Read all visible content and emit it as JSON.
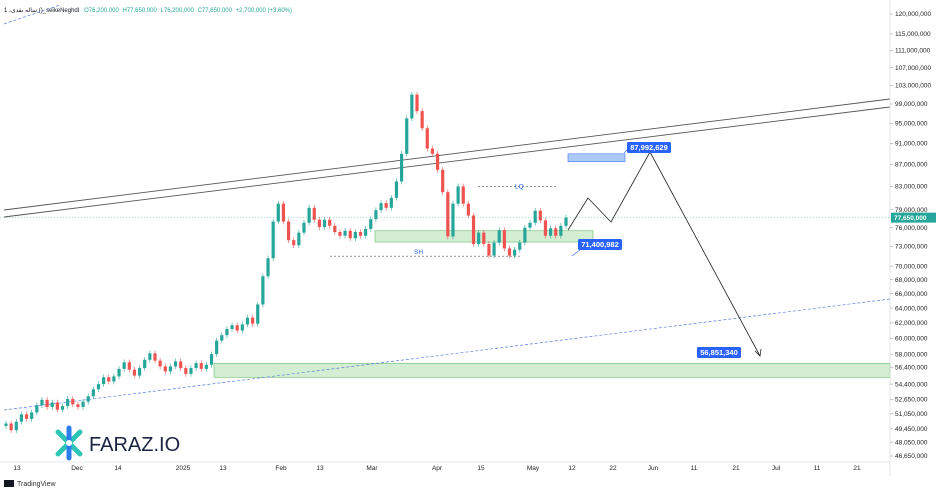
{
  "header": {
    "symbol": "1 ،ساله نقدی ()_seikeNeghdI",
    "open": "O76,200,000",
    "high": "H77,650,000",
    "low": "L76,200,000",
    "close": "C77,650,000",
    "change": "+2,700,000 (+3.60%)"
  },
  "colors": {
    "up": "#26a69a",
    "down": "#ef5350",
    "zone_fill": "#cdeccd",
    "zone_stroke": "#4caf50",
    "callout": "#2962ff",
    "channel": "#555555",
    "trend": "#5b7cdb",
    "price_tag": "#26a69a"
  },
  "chart_data": {
    "type": "candlestick",
    "price_axis": {
      "ticks": [
        120000000,
        115000000,
        111000000,
        107000000,
        103000000,
        99000000,
        95000000,
        91000000,
        87000000,
        83000000,
        79000000,
        76000000,
        73000000,
        70000000,
        68000000,
        66000000,
        64000000,
        62000000,
        60000000,
        58000000,
        56400000,
        54400000,
        52650000,
        51050000,
        49450000,
        48050000,
        46650000
      ],
      "tick_labels": [
        "120,000,000",
        "115,000,000",
        "111,000,000",
        "107,000,000",
        "103,000,000",
        "99,000,000",
        "95,000,000",
        "91,000,000",
        "87,000,000",
        "83,000,000",
        "79,000,000",
        "76,000,000",
        "73,000,000",
        "70,000,000",
        "68,000,000",
        "66,000,000",
        "64,000,000",
        "62,000,000",
        "60,000,000",
        "58,000,000",
        "56,400,000",
        "54,400,000",
        "52,650,000",
        "51,050,000",
        "49,450,000",
        "48,050,000",
        "46,650,000"
      ],
      "scale": "log"
    },
    "time_axis": {
      "labels": [
        "13",
        "Dec",
        "14",
        "2025",
        "13",
        "Feb",
        "13",
        "Mar",
        "Apr",
        "15",
        "May",
        "12",
        "22",
        "Jun",
        "11",
        "21",
        "Jul",
        "11",
        "21"
      ]
    },
    "last_price": {
      "value": 77650000,
      "label": "77,650,000"
    },
    "candles_close": [
      50000000,
      49300000,
      50200000,
      51000000,
      50500000,
      51200000,
      52000000,
      52600000,
      51800000,
      52300000,
      51500000,
      51900000,
      52700000,
      52100000,
      51800000,
      52400000,
      53000000,
      53800000,
      54400000,
      55200000,
      54700000,
      55300000,
      56200000,
      57000000,
      56100000,
      55400000,
      56300000,
      57300000,
      58100000,
      57200000,
      56500000,
      55900000,
      56500000,
      57100000,
      56300000,
      55600000,
      56300000,
      56900000,
      56200000,
      56700000,
      58000000,
      59700000,
      60400000,
      61200000,
      61700000,
      61000000,
      61800000,
      62700000,
      61900000,
      64500000,
      68500000,
      71200000,
      77000000,
      80000000,
      77000000,
      74000000,
      73200000,
      75200000,
      76800000,
      79300000,
      77300000,
      76100000,
      77300000,
      76300000,
      75300000,
      74700000,
      75500000,
      74300000,
      75300000,
      74700000,
      75800000,
      77400000,
      78900000,
      80100000,
      79300000,
      81000000,
      83900000,
      89000000,
      96000000,
      101000000,
      97500000,
      94000000,
      90000000,
      89000000,
      86000000,
      82000000,
      74600000,
      80000000,
      83000000,
      80000000,
      78000000,
      73400000,
      75200000,
      73400000,
      71600000,
      73600000,
      75600000,
      72700000,
      71600000,
      72500000,
      73600000,
      76000000,
      76800000,
      78800000,
      77200000,
      74700000,
      75900000,
      74700000,
      76300000,
      77650000
    ],
    "annotations": {
      "upper_target": "87,992,629",
      "lower_zone": "71,400,982",
      "final_target": "56,851,340",
      "lq": "LQ",
      "sh": "SH"
    },
    "logo": "FARAZ.IO",
    "footer": "TradingView"
  }
}
